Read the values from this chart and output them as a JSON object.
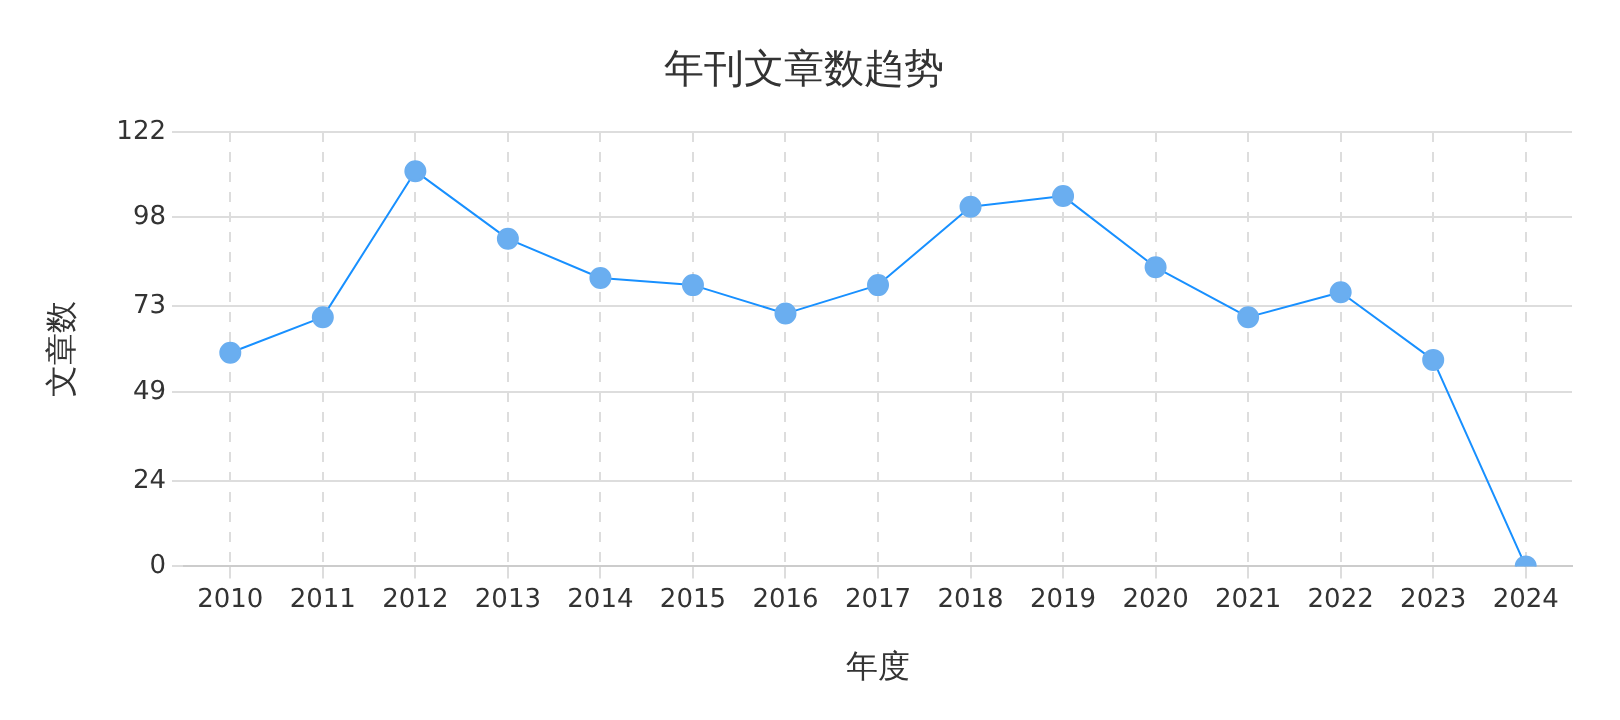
{
  "chart_data": {
    "type": "line",
    "title": "年刊文章数趋势",
    "xlabel": "年度",
    "ylabel": "文章数",
    "categories": [
      "2010",
      "2011",
      "2012",
      "2013",
      "2014",
      "2015",
      "2016",
      "2017",
      "2018",
      "2019",
      "2020",
      "2021",
      "2022",
      "2023",
      "2024"
    ],
    "series": [
      {
        "color": "#1890ff",
        "values": [
          60,
          70,
          111,
          92,
          81,
          79,
          71,
          79,
          101,
          104,
          84,
          70,
          77,
          58,
          0
        ]
      }
    ],
    "ylim": [
      0,
      122
    ],
    "yticks": [
      0,
      24,
      49,
      73,
      98,
      122
    ],
    "grid": true,
    "legend": false,
    "marker": "circle",
    "line_style": "solid"
  }
}
